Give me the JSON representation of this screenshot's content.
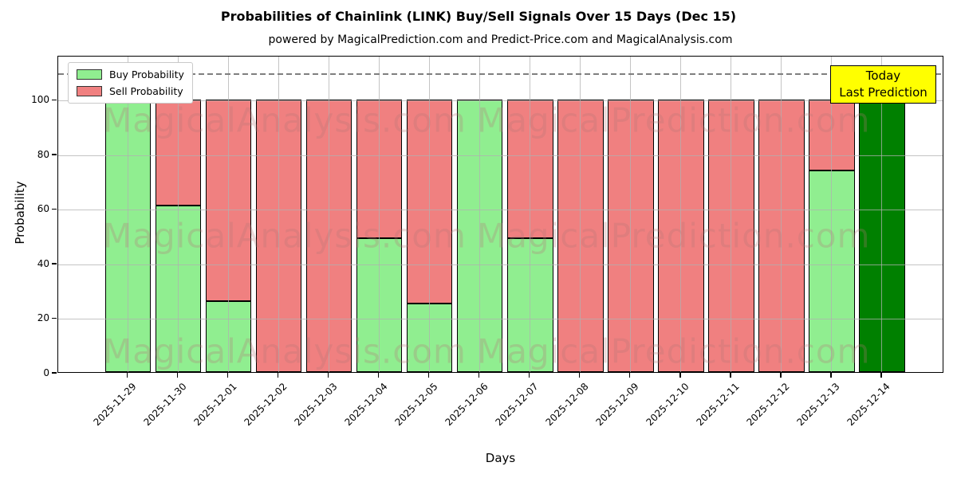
{
  "chart_data": {
    "type": "bar",
    "stacked": true,
    "title": "Probabilities of Chainlink (LINK) Buy/Sell Signals Over 15 Days (Dec 15)",
    "subtitle": "powered by MagicalPrediction.com and Predict-Price.com and MagicalAnalysis.com",
    "xlabel": "Days",
    "ylabel": "Probability",
    "categories": [
      "2025-11-29",
      "2025-11-30",
      "2025-12-01",
      "2025-12-02",
      "2025-12-03",
      "2025-12-04",
      "2025-12-05",
      "2025-12-06",
      "2025-12-07",
      "2025-12-08",
      "2025-12-09",
      "2025-12-10",
      "2025-12-11",
      "2025-12-12",
      "2025-12-13",
      "2025-12-14"
    ],
    "series": [
      {
        "name": "Buy Probability",
        "color": "#90ee90",
        "values": [
          100,
          61,
          26,
          0,
          0,
          49,
          25,
          100,
          49,
          0,
          0,
          0,
          0,
          0,
          74,
          100
        ]
      },
      {
        "name": "Sell Probability",
        "color": "#f08080",
        "values": [
          0,
          39,
          74,
          100,
          100,
          51,
          75,
          0,
          51,
          100,
          100,
          100,
          100,
          100,
          26,
          0
        ]
      }
    ],
    "today_bar": {
      "index": 15,
      "color": "#008000"
    },
    "yticks": [
      0,
      20,
      40,
      60,
      80,
      100
    ],
    "ylim": [
      0,
      116.2
    ],
    "grid": true,
    "grid_color": "#b0b0b0",
    "dashed_line_y": 110,
    "bar_edge_color": "#000000",
    "legend": {
      "position": "upper-left",
      "entries": [
        {
          "label": "Buy Probability",
          "color": "#90ee90"
        },
        {
          "label": "Sell Probability",
          "color": "#f08080"
        }
      ]
    },
    "annotation_box": {
      "lines": [
        "Today",
        "Last Prediction"
      ],
      "bg_color": "#ffff00",
      "border_color": "#000000"
    },
    "watermarks": {
      "left_text": "MagicalAnalysis.com",
      "right_text": "MagicalPrediction.com"
    }
  }
}
